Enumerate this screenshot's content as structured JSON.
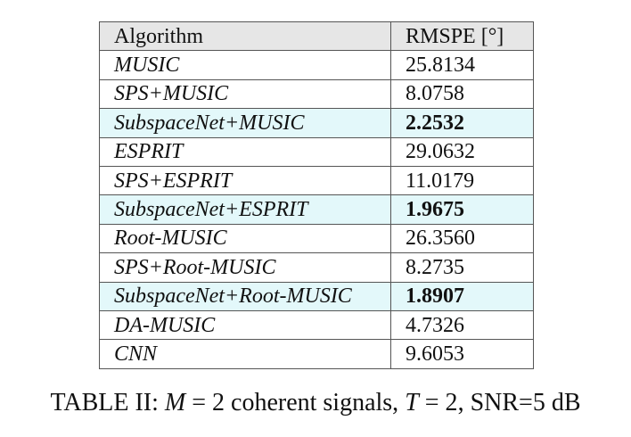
{
  "table": {
    "headers": [
      "Algorithm",
      "RMSPE [°]"
    ],
    "rows": [
      {
        "algorithm": "MUSIC",
        "rmspe": "25.8134",
        "highlight": false
      },
      {
        "algorithm": "SPS+MUSIC",
        "rmspe": "8.0758",
        "highlight": false
      },
      {
        "algorithm": "SubspaceNet+MUSIC",
        "rmspe": "2.2532",
        "highlight": true
      },
      {
        "algorithm": "ESPRIT",
        "rmspe": "29.0632",
        "highlight": false
      },
      {
        "algorithm": "SPS+ESPRIT",
        "rmspe": "11.0179",
        "highlight": false
      },
      {
        "algorithm": "SubspaceNet+ESPRIT",
        "rmspe": "1.9675",
        "highlight": true
      },
      {
        "algorithm": "Root-MUSIC",
        "rmspe": "26.3560",
        "highlight": false
      },
      {
        "algorithm": "SPS+Root-MUSIC",
        "rmspe": "8.2735",
        "highlight": false
      },
      {
        "algorithm": "SubspaceNet+Root-MUSIC",
        "rmspe": "1.8907",
        "highlight": true
      },
      {
        "algorithm": "DA-MUSIC",
        "rmspe": "4.7326",
        "highlight": false
      },
      {
        "algorithm": "CNN",
        "rmspe": "9.6053",
        "highlight": false
      }
    ],
    "highlight_color": "#e3f8fa",
    "header_color": "#e6e6e6"
  },
  "caption": {
    "label": "TABLE II:",
    "m_symbol": "M",
    "eq1": " = 2",
    "text1": " coherent signals, ",
    "t_symbol": "T",
    "eq2": " = 2",
    "text2": ", SNR=5 dB"
  }
}
